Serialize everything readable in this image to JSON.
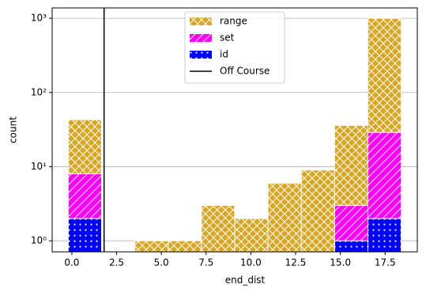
{
  "chart_data": {
    "type": "stacked_histogram",
    "x_label": "end_dist",
    "y_label": "count",
    "bins": [
      -0.2,
      1.66,
      3.52,
      5.38,
      7.24,
      9.1,
      10.96,
      12.82,
      14.68,
      16.54,
      18.4
    ],
    "series": [
      {
        "name": "id",
        "color": "#0000ff",
        "hatch": "dots",
        "values": [
          2,
          0,
          0,
          0,
          0,
          0,
          0,
          0,
          1,
          2
        ]
      },
      {
        "name": "set",
        "color": "#ff00ff",
        "hatch": "slash",
        "values": [
          6,
          0,
          0,
          0,
          0,
          0,
          0,
          0,
          2,
          27
        ]
      },
      {
        "name": "range",
        "color": "#daa520",
        "hatch": "cross",
        "values": [
          35,
          0,
          1,
          1,
          3,
          2,
          6,
          9,
          33,
          971
        ]
      }
    ],
    "vline": {
      "name": "Off Course",
      "x": 1.8,
      "color": "#000000"
    },
    "xlim": [
      -1.1,
      19.3
    ],
    "xticks": [
      {
        "value": 0,
        "label": "0.0"
      },
      2.5,
      {
        "value": 5,
        "label": "5.0"
      },
      7.5,
      {
        "value": 10,
        "label": "10.0"
      },
      12.5,
      {
        "value": 15,
        "label": "15.0"
      },
      17.5
    ],
    "ylim": [
      0.71,
      1380
    ],
    "y_log": true,
    "yticks": [
      {
        "value": 1,
        "label": "10⁰"
      },
      {
        "value": 10,
        "label": "10¹"
      },
      {
        "value": 100,
        "label": "10²"
      },
      {
        "value": 1000,
        "label": "10³"
      }
    ],
    "grid": "y",
    "legend": "upper center"
  }
}
